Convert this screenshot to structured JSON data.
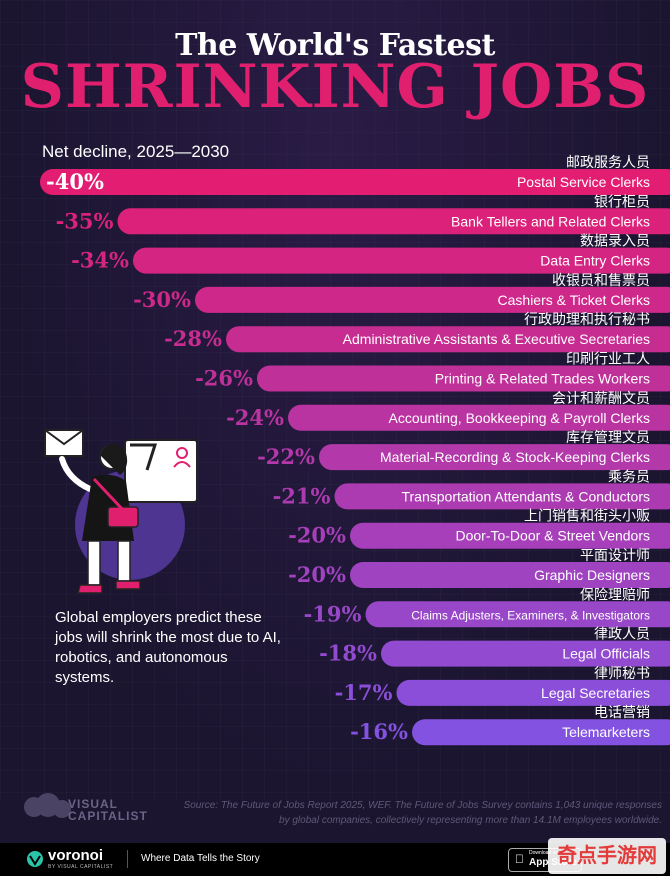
{
  "header": {
    "title_top": "The World's Fastest",
    "title_main": "SHRINKING JOBS",
    "subtitle": "Net decline, 2025—2030"
  },
  "chart_data": {
    "type": "bar",
    "orientation": "horizontal",
    "title": "The World's Fastest SHRINKING JOBS",
    "subtitle": "Net decline, 2025—2030",
    "unit": "%",
    "xlim": [
      -40,
      0
    ],
    "categories": [
      "Postal Service Clerks",
      "Bank Tellers and Related Clerks",
      "Data Entry Clerks",
      "Cashiers & Ticket Clerks",
      "Administrative Assistants & Executive Secretaries",
      "Printing & Related Trades Workers",
      "Accounting, Bookkeeping & Payroll Clerks",
      "Material-Recording & Stock-Keeping Clerks",
      "Transportation Attendants & Conductors",
      "Door-To-Door & Street Vendors",
      "Graphic Designers",
      "Claims Adjusters, Examiners, & Investigators",
      "Legal Officials",
      "Legal Secretaries",
      "Telemarketers"
    ],
    "categories_zh": [
      "邮政服务人员",
      "银行柜员",
      "数据录入员",
      "收银员和售票员",
      "行政助理和执行秘书",
      "印刷行业工人",
      "会计和薪酬文员",
      "库存管理文员",
      "乘务员",
      "上门销售和街头小贩",
      "平面设计师",
      "保险理赔师",
      "律政人员",
      "律师秘书",
      "电话营销"
    ],
    "values": [
      -40,
      -35,
      -34,
      -30,
      -28,
      -26,
      -24,
      -22,
      -21,
      -20,
      -20,
      -19,
      -18,
      -17,
      -16
    ],
    "value_labels": [
      "-40%",
      "-35%",
      "-34%",
      "-30%",
      "-28%",
      "-26%",
      "-24%",
      "-22%",
      "-21%",
      "-20%",
      "-20%",
      "-19%",
      "-18%",
      "-17%",
      "-16%"
    ],
    "colors": {
      "start": "#e21d72",
      "end": "#8452e0"
    }
  },
  "note": "Global employers predict these jobs will shrink the most due to AI, robotics, and autonomous systems.",
  "source": "Source: The Future of Jobs Report 2025, WEF. The Future of Jobs Survey contains 1,043 unique responses by global companies, collectively representing more than 14.1M employees worldwide.",
  "brand": {
    "vc_line1": "VISUAL",
    "vc_line2": "CAPITALIST",
    "voronoi": "voronoi",
    "voronoi_sub": "BY VISUAL CAPITALIST",
    "tagline": "Where Data Tells the Story",
    "appstore_small": "Download on the",
    "appstore_big": "App Store",
    "watermark": "奇点手游网"
  }
}
